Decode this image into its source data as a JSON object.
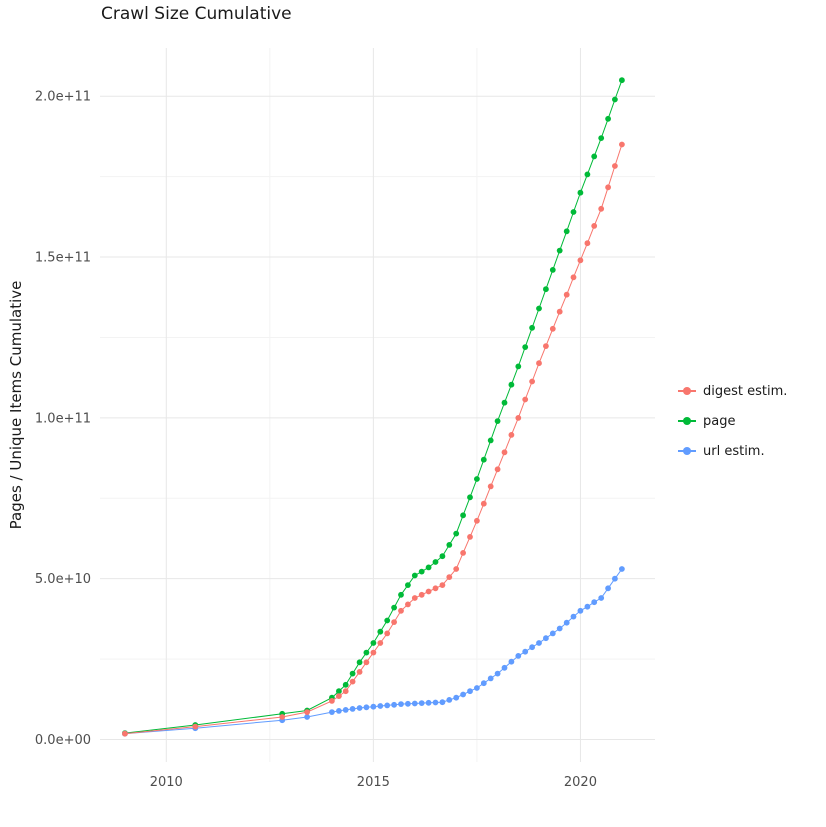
{
  "chart_data": {
    "type": "line",
    "title": "Crawl Size Cumulative",
    "xlabel": "",
    "ylabel": "Pages / Unique Items Cumulative",
    "legend_position": "right",
    "grid": true,
    "xlim": [
      2008.4,
      2021.8
    ],
    "ylim_e9": [
      -7,
      215
    ],
    "value_unit": "1e9 (values stored in billions)",
    "x": [
      2009,
      2010.7,
      2012.8,
      2013.4,
      2014,
      2014.167,
      2014.333,
      2014.5,
      2014.667,
      2014.833,
      2015,
      2015.167,
      2015.333,
      2015.5,
      2015.667,
      2015.833,
      2016,
      2016.167,
      2016.333,
      2016.5,
      2016.667,
      2016.833,
      2017,
      2017.167,
      2017.333,
      2017.5,
      2017.667,
      2017.833,
      2018,
      2018.167,
      2018.333,
      2018.5,
      2018.667,
      2018.833,
      2019,
      2019.167,
      2019.333,
      2019.5,
      2019.667,
      2019.833,
      2020,
      2020.167,
      2020.333,
      2020.5,
      2020.667,
      2020.833,
      2021
    ],
    "series": [
      {
        "name": "digest estim.",
        "color": "#F8766D",
        "values_e9": [
          1.8,
          4,
          7,
          8.5,
          12,
          13.5,
          15,
          18,
          21,
          24,
          27,
          30,
          33,
          36.5,
          40,
          42,
          44,
          45,
          46,
          47,
          48,
          50.5,
          53,
          58,
          63,
          68,
          73.3,
          78.7,
          84,
          89.3,
          94.7,
          100,
          105.7,
          111.3,
          117,
          122.3,
          127.7,
          133,
          138.3,
          143.7,
          149,
          154.3,
          159.7,
          165,
          171.7,
          178.3,
          185
        ]
      },
      {
        "name": "page",
        "color": "#00BA38",
        "values_e9": [
          2,
          4.5,
          8,
          9,
          13,
          15,
          17,
          20.5,
          24,
          27,
          30,
          33.5,
          37,
          41,
          45,
          48,
          51,
          52.2,
          53.5,
          55.2,
          57,
          60.5,
          64,
          69.7,
          75.3,
          81,
          87,
          93,
          99,
          104.7,
          110.3,
          116,
          122,
          128,
          134,
          140,
          146,
          152,
          158,
          164,
          170,
          175.7,
          181.3,
          187,
          193,
          199,
          205
        ]
      },
      {
        "name": "url estim.",
        "color": "#619CFF",
        "values_e9": [
          1.8,
          3.5,
          6,
          7,
          8.5,
          8.9,
          9.2,
          9.5,
          9.8,
          10,
          10.2,
          10.4,
          10.6,
          10.8,
          11,
          11.1,
          11.2,
          11.3,
          11.4,
          11.5,
          11.6,
          12.3,
          13,
          14,
          15,
          16,
          17.5,
          19,
          20.5,
          22.3,
          24.2,
          26,
          27.3,
          28.7,
          30,
          31.5,
          33,
          34.5,
          36.3,
          38.2,
          40,
          41.3,
          42.7,
          44,
          47,
          50,
          53
        ]
      }
    ]
  },
  "y_axis": {
    "label": "Pages / Unique Items Cumulative",
    "ticks": [
      {
        "value_e9": 0,
        "label": "0.0e+00"
      },
      {
        "value_e9": 50,
        "label": "5.0e+10"
      },
      {
        "value_e9": 100,
        "label": "1.0e+11"
      },
      {
        "value_e9": 150,
        "label": "1.5e+11"
      },
      {
        "value_e9": 200,
        "label": "2.0e+11"
      }
    ],
    "minor_e9": [
      25,
      75,
      125,
      175
    ]
  },
  "x_axis": {
    "ticks": [
      {
        "value": 2010,
        "label": "2010"
      },
      {
        "value": 2015,
        "label": "2015"
      },
      {
        "value": 2020,
        "label": "2020"
      }
    ],
    "minor": [
      2012.5,
      2017.5
    ]
  },
  "legend": {
    "entries": [
      "digest estim.",
      "page",
      "url estim."
    ]
  }
}
